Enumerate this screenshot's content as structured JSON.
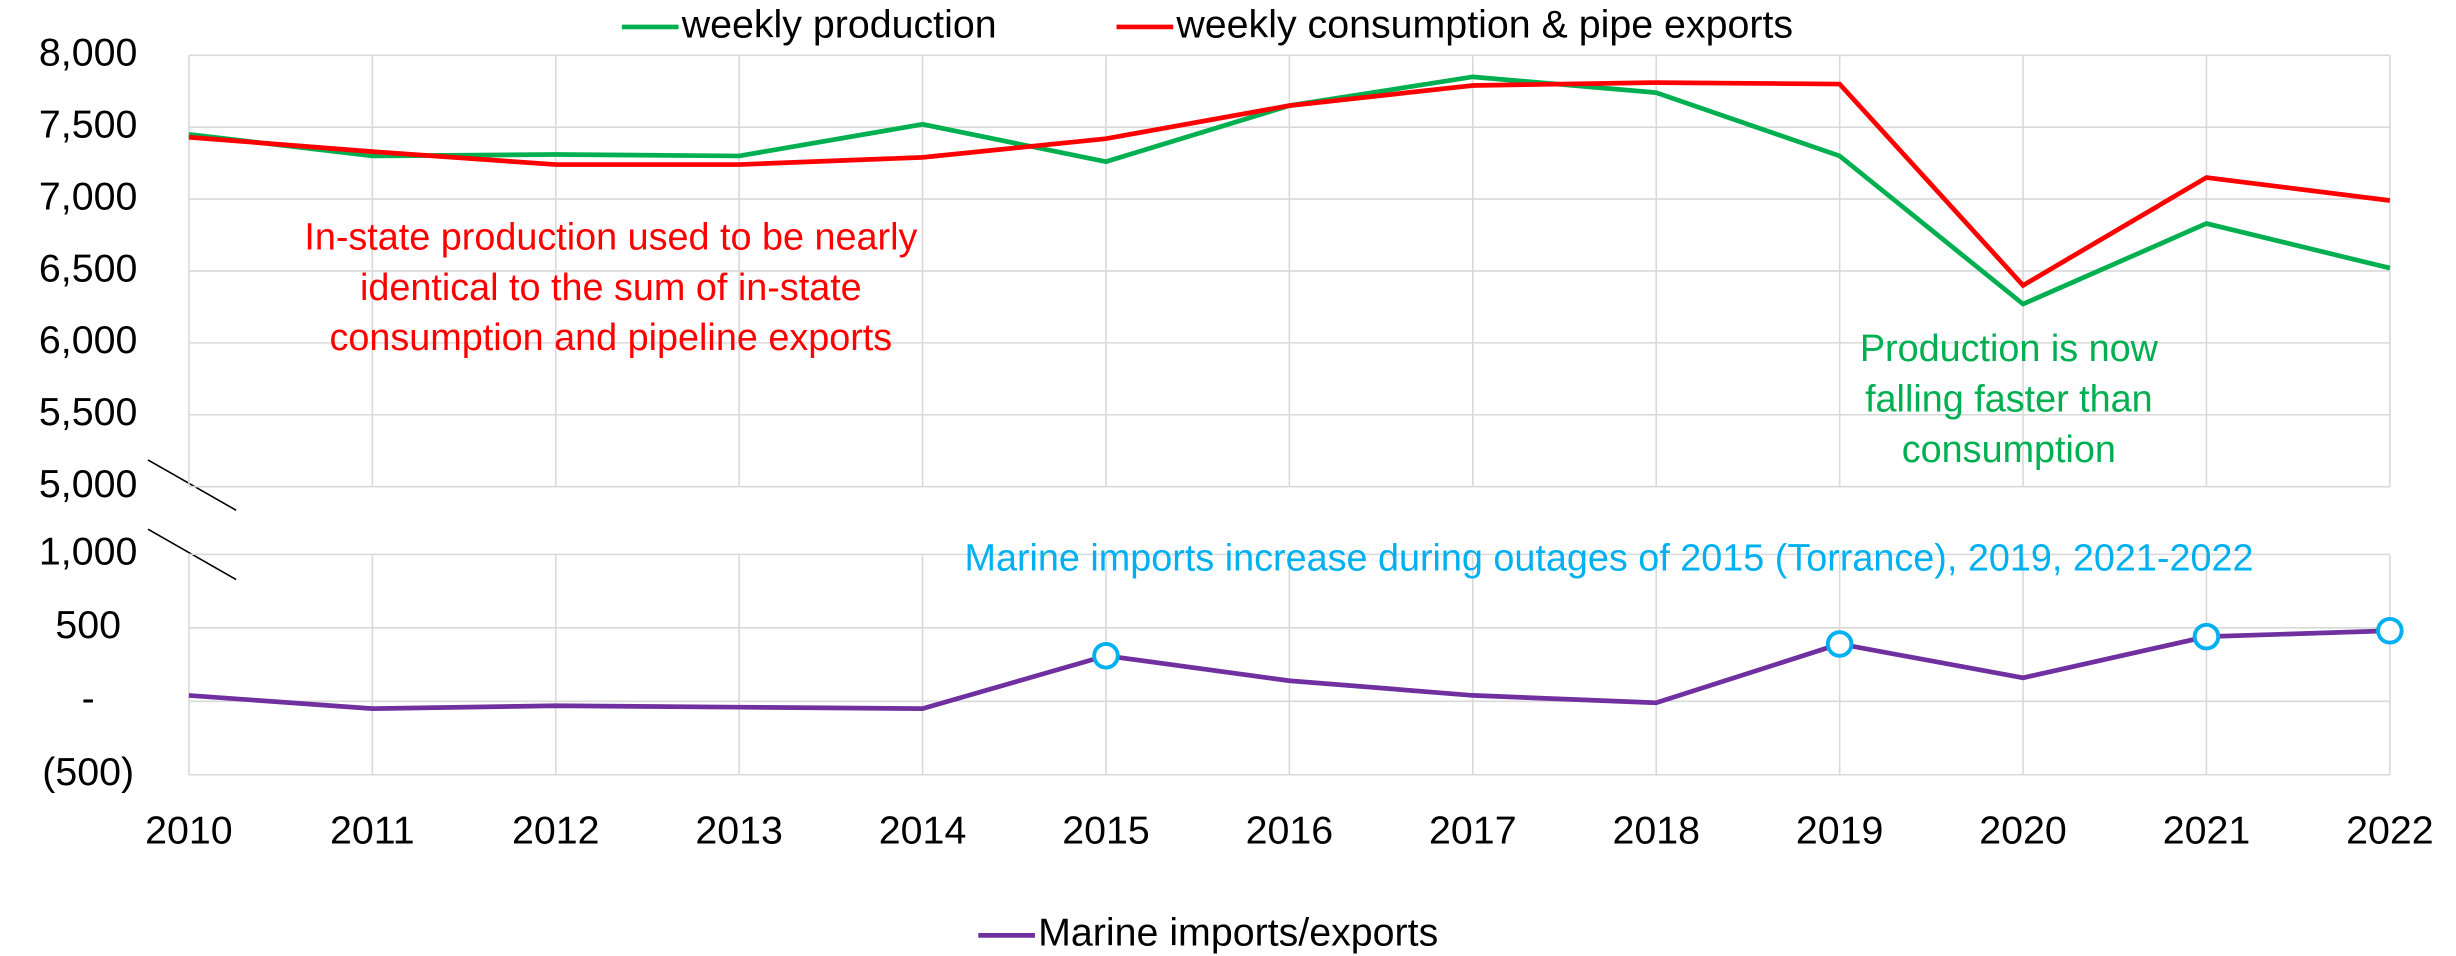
{
  "chart_data": [
    {
      "type": "line",
      "legend": "top",
      "grid": true,
      "x": [
        2010,
        2011,
        2012,
        2013,
        2014,
        2015,
        2016,
        2017,
        2018,
        2019,
        2020,
        2021,
        2022
      ],
      "xlim": [
        2010,
        2022
      ],
      "series": [
        {
          "name": "weekly production",
          "color": "#00b050",
          "values": [
            7450,
            7300,
            7310,
            7300,
            7520,
            7260,
            7650,
            7850,
            7740,
            7300,
            6270,
            6830,
            6520
          ]
        },
        {
          "name": "weekly consumption & pipe exports",
          "color": "#ff0000",
          "values": [
            7430,
            7330,
            7240,
            7240,
            7290,
            7420,
            7650,
            7790,
            7810,
            7800,
            6400,
            7150,
            6990
          ]
        }
      ],
      "ylim": [
        5000,
        8000
      ],
      "yticks": [
        {
          "value": 5000,
          "label": "5,000"
        },
        {
          "value": 5500,
          "label": "5,500"
        },
        {
          "value": 6000,
          "label": "6,000"
        },
        {
          "value": 6500,
          "label": "6,500"
        },
        {
          "value": 7000,
          "label": "7,000"
        },
        {
          "value": 7500,
          "label": "7,500"
        },
        {
          "value": 8000,
          "label": "8,000"
        }
      ],
      "annotations": [
        {
          "lines": [
            "In-state production used to be nearly",
            "identical to the sum of in-state",
            "consumption and pipeline exports"
          ],
          "color": "#ff0000"
        },
        {
          "lines": [
            "Production is now",
            "falling faster than",
            "consumption"
          ],
          "color": "#00b050"
        }
      ]
    },
    {
      "type": "line",
      "legend": "bottom",
      "grid": true,
      "x": [
        2010,
        2011,
        2012,
        2013,
        2014,
        2015,
        2016,
        2017,
        2018,
        2019,
        2020,
        2021,
        2022
      ],
      "xlim": [
        2010,
        2022
      ],
      "xticks": [
        2010,
        2011,
        2012,
        2013,
        2014,
        2015,
        2016,
        2017,
        2018,
        2019,
        2020,
        2021,
        2022
      ],
      "series": [
        {
          "name": "Marine imports/exports",
          "color": "#7030a0",
          "values": [
            40,
            -50,
            -30,
            -40,
            -50,
            310,
            140,
            40,
            -10,
            390,
            160,
            440,
            480
          ]
        }
      ],
      "highlighted_x": [
        2015,
        2019,
        2021,
        2022
      ],
      "highlight_color": "#00b0f0",
      "ylim": [
        -500,
        1000
      ],
      "yticks": [
        {
          "value": -500,
          "label": "(500)"
        },
        {
          "value": 0,
          "label": "-"
        },
        500,
        {
          "value": 1000,
          "label": "1,000"
        }
      ],
      "annotations": [
        {
          "lines": [
            "Marine imports increase during outages of 2015 (Torrance), 2019, 2021-2022"
          ],
          "color": "#00b0f0"
        }
      ]
    }
  ]
}
